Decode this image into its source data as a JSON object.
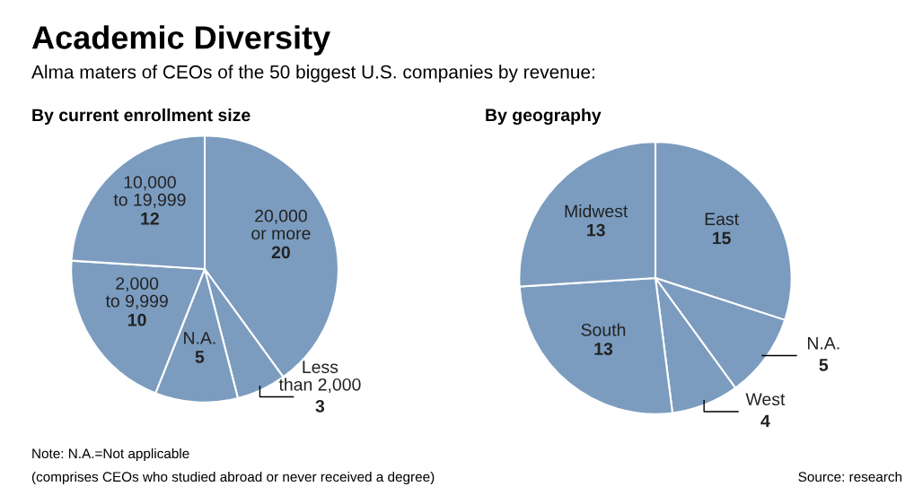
{
  "chart_data": [
    {
      "type": "pie",
      "title": "By current enrollment size",
      "categories": [
        "20,000\nor more",
        "Less\nthan 2,000",
        "N.A.",
        "2,000\nto 9,999",
        "10,000\nto 19,999"
      ],
      "values": [
        20,
        3,
        5,
        10,
        12
      ],
      "colors": [
        "#7b9cbf",
        "#7b9cbf",
        "#7b9cbf",
        "#7b9cbf",
        "#7b9cbf"
      ],
      "data_labels": true,
      "annotations": [
        "Academic Diversity",
        "Alma maters of CEOs of the 50 biggest U.S. companies by revenue:",
        "Note: N.A.=Not applicable",
        "(comprises CEOs who studied abroad or never received a degree)"
      ]
    },
    {
      "type": "pie",
      "title": "By geography",
      "categories": [
        "East",
        "N.A.",
        "West",
        "South",
        "Midwest"
      ],
      "values": [
        15,
        5,
        4,
        13,
        13
      ],
      "colors": [
        "#7b9cbf",
        "#7b9cbf",
        "#7b9cbf",
        "#7b9cbf",
        "#7b9cbf"
      ],
      "data_labels": true,
      "annotations": [
        "Source: research"
      ]
    }
  ]
}
